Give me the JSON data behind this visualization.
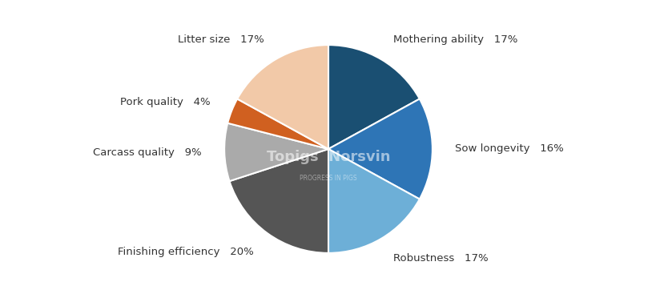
{
  "labels": [
    "Mothering ability",
    "Sow longevity",
    "Robustness",
    "Finishing efficiency",
    "Carcass quality",
    "Pork quality",
    "Litter size"
  ],
  "values": [
    17,
    16,
    17,
    20,
    9,
    4,
    17
  ],
  "colors": [
    "#1a4f72",
    "#2e75b6",
    "#6dafd7",
    "#555555",
    "#aaaaaa",
    "#d06020",
    "#f2c9a8"
  ],
  "percentages": [
    "17%",
    "16%",
    "17%",
    "20%",
    "9%",
    "4%",
    "17%"
  ],
  "background_color": "#ffffff",
  "startangle": 90,
  "figsize": [
    8.2,
    3.72
  ],
  "dpi": 100
}
